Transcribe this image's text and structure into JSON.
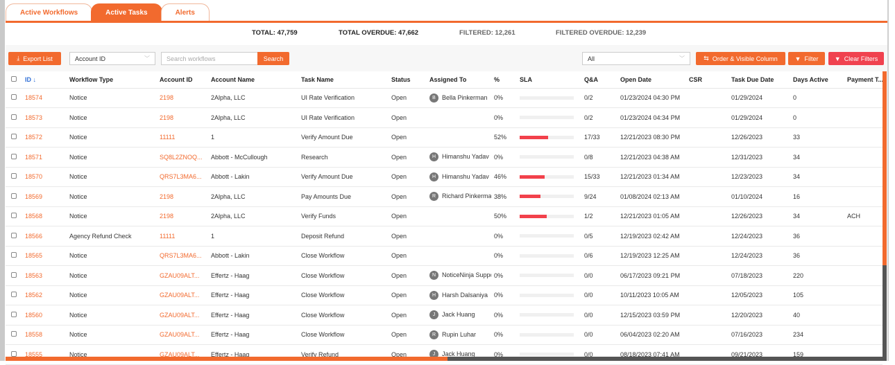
{
  "tabs": [
    {
      "label": "Active Workflows",
      "active": false
    },
    {
      "label": "Active Tasks",
      "active": true
    },
    {
      "label": "Alerts",
      "active": false
    }
  ],
  "totals": {
    "total": "TOTAL: 47,759",
    "total_overdue": "TOTAL OVERDUE: 47,662",
    "filtered": "FILTERED: 12,261",
    "filtered_overdue": "FILTERED OVERDUE: 12,239"
  },
  "toolbar": {
    "export_label": "Export List",
    "field_select": "Account ID",
    "search_placeholder": "Search workflows",
    "search_label": "Search",
    "status_select": "All",
    "order_label": "Order & Visible Column",
    "filter_label": "Filter",
    "clear_label": "Clear Filters"
  },
  "colors": {
    "accent": "#f26a2e",
    "danger": "#f0424f",
    "sla_bar": "#f2414b"
  },
  "columns": [
    "ID",
    "Workflow Type",
    "Account ID",
    "Account Name",
    "Task Name",
    "Status",
    "Assigned To",
    "%",
    "SLA",
    "Q&A",
    "Open Date",
    "CSR",
    "Task Due Date",
    "Days Active",
    "Payment T..."
  ],
  "rows": [
    {
      "id": "18574",
      "type": "Notice",
      "account_id": "2198",
      "account_name": "2Alpha, LLC",
      "task": "UI Rate Verification",
      "status": "Open",
      "avatar": "B",
      "assigned": "Bella Pinkerman",
      "pct": "0%",
      "sla": 0,
      "qa": "0/2",
      "open": "01/23/2024 04:30 PM",
      "csr": "",
      "due": "01/29/2024",
      "days": "0",
      "payment": ""
    },
    {
      "id": "18573",
      "type": "Notice",
      "account_id": "2198",
      "account_name": "2Alpha, LLC",
      "task": "UI Rate Verification",
      "status": "Open",
      "avatar": "",
      "assigned": "",
      "pct": "0%",
      "sla": 0,
      "qa": "0/2",
      "open": "01/23/2024 04:34 PM",
      "csr": "",
      "due": "01/29/2024",
      "days": "0",
      "payment": ""
    },
    {
      "id": "18572",
      "type": "Notice",
      "account_id": "11111",
      "account_name": "1",
      "task": "Verify Amount Due",
      "status": "Open",
      "avatar": "",
      "assigned": "",
      "pct": "52%",
      "sla": 52,
      "qa": "17/33",
      "open": "12/21/2023 08:30 PM",
      "csr": "",
      "due": "12/26/2023",
      "days": "33",
      "payment": ""
    },
    {
      "id": "18571",
      "type": "Notice",
      "account_id": "SQ8L2ZNOQ...",
      "account_name": "Abbott - McCullough",
      "task": "Research",
      "status": "Open",
      "avatar": "H",
      "assigned": "Himanshu Yadav",
      "pct": "0%",
      "sla": 0,
      "qa": "0/8",
      "open": "12/21/2023 04:38 AM",
      "csr": "",
      "due": "12/31/2023",
      "days": "34",
      "payment": ""
    },
    {
      "id": "18570",
      "type": "Notice",
      "account_id": "QRS7L3MA6...",
      "account_name": "Abbott - Lakin",
      "task": "Verify Amount Due",
      "status": "Open",
      "avatar": "H",
      "assigned": "Himanshu Yadav",
      "pct": "46%",
      "sla": 46,
      "qa": "15/33",
      "open": "12/21/2023 01:34 AM",
      "csr": "",
      "due": "12/23/2023",
      "days": "34",
      "payment": ""
    },
    {
      "id": "18569",
      "type": "Notice",
      "account_id": "2198",
      "account_name": "2Alpha, LLC",
      "task": "Pay Amounts Due",
      "status": "Open",
      "avatar": "R",
      "assigned": "Richard Pinkerman",
      "pct": "38%",
      "sla": 38,
      "qa": "9/24",
      "open": "01/08/2024 02:13 AM",
      "csr": "",
      "due": "01/10/2024",
      "days": "16",
      "payment": ""
    },
    {
      "id": "18568",
      "type": "Notice",
      "account_id": "2198",
      "account_name": "2Alpha, LLC",
      "task": "Verify Funds",
      "status": "Open",
      "avatar": "",
      "assigned": "",
      "pct": "50%",
      "sla": 50,
      "qa": "1/2",
      "open": "12/21/2023 01:05 AM",
      "csr": "",
      "due": "12/26/2023",
      "days": "34",
      "payment": "ACH"
    },
    {
      "id": "18566",
      "type": "Agency Refund Check",
      "account_id": "11111",
      "account_name": "1",
      "task": "Deposit Refund",
      "status": "Open",
      "avatar": "",
      "assigned": "",
      "pct": "0%",
      "sla": 0,
      "qa": "0/5",
      "open": "12/19/2023 02:42 AM",
      "csr": "",
      "due": "12/24/2023",
      "days": "36",
      "payment": ""
    },
    {
      "id": "18565",
      "type": "Notice",
      "account_id": "QRS7L3MA6...",
      "account_name": "Abbott - Lakin",
      "task": "Close Workflow",
      "status": "Open",
      "avatar": "",
      "assigned": "",
      "pct": "0%",
      "sla": 0,
      "qa": "0/6",
      "open": "12/19/2023 12:25 AM",
      "csr": "",
      "due": "12/24/2023",
      "days": "36",
      "payment": ""
    },
    {
      "id": "18563",
      "type": "Notice",
      "account_id": "GZAU09ALT...",
      "account_name": "Effertz - Haag",
      "task": "Close Workflow",
      "status": "Open",
      "avatar": "N",
      "assigned": "NoticeNinja Support",
      "pct": "0%",
      "sla": 0,
      "qa": "0/0",
      "open": "06/17/2023 09:21 PM",
      "csr": "",
      "due": "07/18/2023",
      "days": "220",
      "payment": ""
    },
    {
      "id": "18562",
      "type": "Notice",
      "account_id": "GZAU09ALT...",
      "account_name": "Effertz - Haag",
      "task": "Close Workflow",
      "status": "Open",
      "avatar": "H",
      "assigned": "Harsh Dalsaniya",
      "pct": "0%",
      "sla": 0,
      "qa": "0/0",
      "open": "10/11/2023 10:05 AM",
      "csr": "",
      "due": "12/05/2023",
      "days": "105",
      "payment": ""
    },
    {
      "id": "18560",
      "type": "Notice",
      "account_id": "GZAU09ALT...",
      "account_name": "Effertz - Haag",
      "task": "Close Workflow",
      "status": "Open",
      "avatar": "J",
      "assigned": "Jack Huang",
      "pct": "0%",
      "sla": 0,
      "qa": "0/0",
      "open": "12/15/2023 03:59 PM",
      "csr": "",
      "due": "12/20/2023",
      "days": "40",
      "payment": ""
    },
    {
      "id": "18558",
      "type": "Notice",
      "account_id": "GZAU09ALT...",
      "account_name": "Effertz - Haag",
      "task": "Close Workflow",
      "status": "Open",
      "avatar": "R",
      "assigned": "Rupin Luhar",
      "pct": "0%",
      "sla": 0,
      "qa": "0/0",
      "open": "06/04/2023 02:20 AM",
      "csr": "",
      "due": "07/16/2023",
      "days": "234",
      "payment": ""
    },
    {
      "id": "18555",
      "type": "Notice",
      "account_id": "GZAU09ALT...",
      "account_name": "Effertz - Haag",
      "task": "Verify Refund",
      "status": "Open",
      "avatar": "J",
      "assigned": "Jack Huang",
      "pct": "0%",
      "sla": 0,
      "qa": "0/0",
      "open": "08/18/2023 07:41 AM",
      "csr": "",
      "due": "09/21/2023",
      "days": "159",
      "payment": ""
    }
  ]
}
